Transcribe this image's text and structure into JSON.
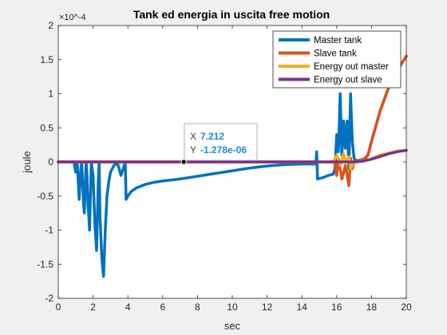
{
  "chart_data": {
    "type": "line",
    "title": "Tank ed energia in uscita free motion",
    "xlabel": "sec",
    "ylabel": "joule",
    "xlim": [
      0,
      20
    ],
    "ylim": [
      -2,
      2
    ],
    "y_exponent": "×10^-4",
    "xticks": [
      "0",
      "2",
      "4",
      "6",
      "8",
      "10",
      "12",
      "14",
      "16",
      "18",
      "20"
    ],
    "yticks": [
      "-2",
      "-1.5",
      "-1",
      "-0.5",
      "0",
      "0.5",
      "1",
      "1.5",
      "2"
    ],
    "legend_position": "top-right",
    "series": [
      {
        "name": "Master tank",
        "color": "#0072BD",
        "x": [
          0,
          0.9,
          1.0,
          1.05,
          1.1,
          1.15,
          1.2,
          1.3,
          1.35,
          1.4,
          1.45,
          1.5,
          1.6,
          1.65,
          1.7,
          1.75,
          1.8,
          1.9,
          2.0,
          2.1,
          2.2,
          2.3,
          2.35,
          2.4,
          2.5,
          2.6,
          2.7,
          2.8,
          2.9,
          3.0,
          3.2,
          3.4,
          3.5,
          3.6,
          3.8,
          3.85,
          3.9,
          4.0,
          4.2,
          4.5,
          5.0,
          5.5,
          6.0,
          7.0,
          8.0,
          9.0,
          10.0,
          11.0,
          12.0,
          13.0,
          14.0,
          14.8,
          14.85,
          14.9,
          15.2,
          15.5,
          15.8,
          15.9,
          16.0,
          16.1,
          16.2,
          16.3,
          16.4,
          16.5,
          16.6,
          16.7,
          16.8,
          16.9,
          17.0,
          17.2,
          17.4,
          17.6,
          17.8,
          18.0,
          18.5,
          19.0,
          19.5,
          20.0
        ],
        "y": [
          0,
          0,
          -0.15,
          0,
          -0.05,
          -0.3,
          -0.55,
          -0.1,
          0,
          -0.3,
          -0.6,
          -0.75,
          0,
          -0.2,
          -0.6,
          -0.8,
          -1.0,
          0,
          -0.2,
          -0.9,
          -1.3,
          -0.3,
          0,
          -0.8,
          -1.4,
          -1.68,
          -1.0,
          -0.5,
          -0.3,
          -0.15,
          -0.05,
          -0.02,
          -0.1,
          -0.2,
          -0.05,
          0,
          -0.55,
          -0.5,
          -0.43,
          -0.38,
          -0.33,
          -0.3,
          -0.28,
          -0.25,
          -0.21,
          -0.17,
          -0.13,
          -0.09,
          -0.06,
          -0.04,
          -0.03,
          -0.03,
          0.15,
          -0.25,
          -0.23,
          -0.2,
          -0.18,
          -0.1,
          0.4,
          0.15,
          1.0,
          0.1,
          0.6,
          0.2,
          0.6,
          -0.1,
          1.0,
          0.3,
          0.05,
          0.0,
          0.02,
          0.04,
          0.1,
          0.3,
          0.75,
          1.1,
          1.35,
          1.55
        ]
      },
      {
        "name": "Slave tank",
        "color": "#D95319",
        "x": [
          0,
          15.5,
          15.9,
          16.0,
          16.1,
          16.3,
          16.5,
          16.7,
          16.8,
          16.9,
          17.0,
          17.2,
          17.4,
          17.6,
          17.8,
          18.0,
          18.5,
          19.0,
          19.5,
          20.0
        ],
        "y": [
          0,
          0,
          0,
          -0.2,
          0.05,
          -0.25,
          -0.05,
          -0.35,
          0.05,
          -0.1,
          0,
          0.02,
          0.03,
          0.05,
          0.1,
          0.3,
          0.75,
          1.1,
          1.35,
          1.55
        ]
      },
      {
        "name": "Energy out master",
        "color": "#EDB120",
        "x": [
          0,
          15.8,
          16.0,
          16.2,
          16.4,
          16.5,
          16.7,
          16.8,
          17.0,
          17.2,
          17.4,
          17.6,
          17.8,
          18.0,
          18.5,
          19.0,
          19.5,
          20.0
        ],
        "y": [
          0,
          0,
          0.1,
          -0.05,
          0.12,
          0,
          0.08,
          -0.1,
          0,
          0,
          0.01,
          0.02,
          0.03,
          0.05,
          0.1,
          0.13,
          0.16,
          0.17
        ]
      },
      {
        "name": "Energy out slave",
        "color": "#7E2F8E",
        "x": [
          0,
          17.0,
          17.5,
          18.0,
          18.5,
          19.0,
          19.5,
          20.0
        ],
        "y": [
          0,
          0,
          0.01,
          0.04,
          0.08,
          0.12,
          0.15,
          0.17
        ]
      }
    ],
    "datatip": {
      "x": 7.212,
      "y_value": -1.278e-06,
      "x_label": "X",
      "x_text": "7.212",
      "y_label": "Y",
      "y_text": "-1.278e-06"
    }
  }
}
